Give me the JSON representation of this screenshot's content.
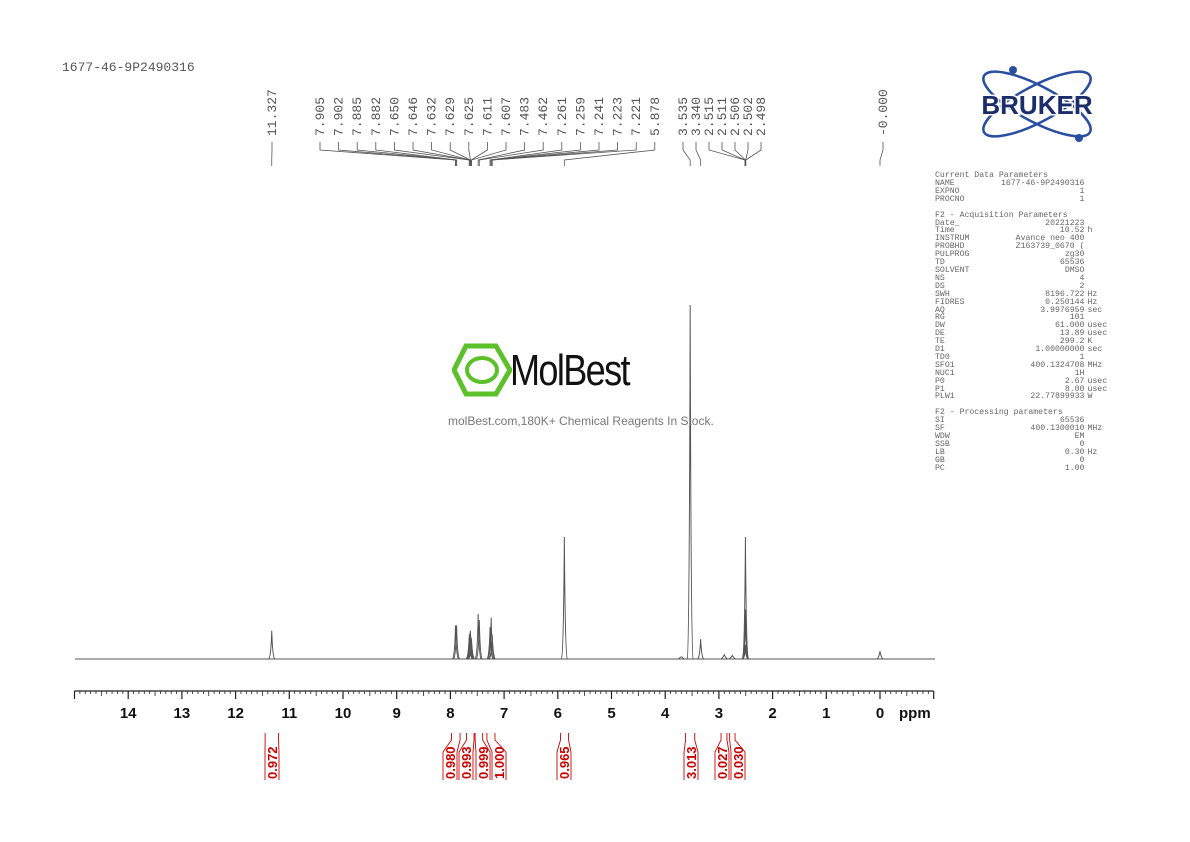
{
  "sample_id": "1677-46-9P2490316",
  "watermark": {
    "name": "MolBest",
    "tagline": "molBest.com,180K+ Chemical Reagents In Stock.",
    "color": "#5cc02a"
  },
  "logo": {
    "text": "BRUKER",
    "color": "#1b2d6b",
    "orbit_color": "#2a4ea0"
  },
  "parameters": {
    "current_title": "Current Data Parameters",
    "current": [
      [
        "NAME",
        "1677-46-9P2490316",
        ""
      ],
      [
        "EXPNO",
        "1",
        ""
      ],
      [
        "PROCNO",
        "1",
        ""
      ]
    ],
    "acq_title": "F2 - Acquisition Parameters",
    "acq": [
      [
        "Date_",
        "20221223",
        ""
      ],
      [
        "Time",
        "10.52",
        "h"
      ],
      [
        "INSTRUM",
        "Avance neo 400",
        ""
      ],
      [
        "PROBHD",
        "Z163739_0670 (",
        ""
      ],
      [
        "PULPROG",
        "zg30",
        ""
      ],
      [
        "TD",
        "65536",
        ""
      ],
      [
        "SOLVENT",
        "DMSO",
        ""
      ],
      [
        "NS",
        "4",
        ""
      ],
      [
        "DS",
        "2",
        ""
      ],
      [
        "SWH",
        "8196.722",
        "Hz"
      ],
      [
        "FIDRES",
        "0.250144",
        "Hz"
      ],
      [
        "AQ",
        "3.9976959",
        "sec"
      ],
      [
        "RG",
        "101",
        ""
      ],
      [
        "DW",
        "61.000",
        "usec"
      ],
      [
        "DE",
        "13.89",
        "usec"
      ],
      [
        "TE",
        "299.2",
        "K"
      ],
      [
        "D1",
        "1.00000000",
        "sec"
      ],
      [
        "TD0",
        "1",
        ""
      ],
      [
        "SFO1",
        "400.1324708",
        "MHz"
      ],
      [
        "NUC1",
        "1H",
        ""
      ],
      [
        "P0",
        "2.67",
        "usec"
      ],
      [
        "P1",
        "8.00",
        "usec"
      ],
      [
        "PLW1",
        "22.77899933",
        "W"
      ]
    ],
    "proc_title": "F2 - Processing parameters",
    "proc": [
      [
        "SI",
        "65536",
        ""
      ],
      [
        "SF",
        "400.1300010",
        "MHz"
      ],
      [
        "WDW",
        "EM",
        ""
      ],
      [
        "SSB",
        "0",
        ""
      ],
      [
        "LB",
        "0.30",
        "Hz"
      ],
      [
        "GB",
        "0",
        ""
      ],
      [
        "PC",
        "1.00",
        ""
      ]
    ]
  },
  "chart_data": {
    "type": "line",
    "xlabel": "ppm",
    "xlim": [
      15,
      -1
    ],
    "x_reversed": true,
    "xticks": [
      14,
      13,
      12,
      11,
      10,
      9,
      8,
      7,
      6,
      5,
      4,
      3,
      2,
      1,
      0
    ],
    "grid": false,
    "line_color": "#555555",
    "label_color": "#555555",
    "integral_color": "#cc0000",
    "peaks": [
      {
        "ppm": 11.327,
        "intensity": 8
      },
      {
        "ppm": 7.905,
        "intensity": 9.5
      },
      {
        "ppm": 7.885,
        "intensity": 9.5
      },
      {
        "ppm": 7.65,
        "intensity": 6
      },
      {
        "ppm": 7.646,
        "intensity": 7
      },
      {
        "ppm": 7.632,
        "intensity": 7.5
      },
      {
        "ppm": 7.629,
        "intensity": 8
      },
      {
        "ppm": 7.625,
        "intensity": 7
      },
      {
        "ppm": 7.611,
        "intensity": 6
      },
      {
        "ppm": 7.607,
        "intensity": 5.5
      },
      {
        "ppm": 7.483,
        "intensity": 12.7
      },
      {
        "ppm": 7.462,
        "intensity": 11
      },
      {
        "ppm": 7.261,
        "intensity": 9
      },
      {
        "ppm": 7.259,
        "intensity": 8.5
      },
      {
        "ppm": 7.241,
        "intensity": 11.7
      },
      {
        "ppm": 7.223,
        "intensity": 7
      },
      {
        "ppm": 7.221,
        "intensity": 6.5
      },
      {
        "ppm": 5.878,
        "intensity": 34.5
      },
      {
        "ppm": 3.535,
        "intensity": 100
      },
      {
        "ppm": 3.34,
        "intensity": 5.6
      },
      {
        "ppm": 3.7,
        "intensity": 0.6
      },
      {
        "ppm": 2.9,
        "intensity": 1.2
      },
      {
        "ppm": 2.75,
        "intensity": 1
      },
      {
        "ppm": 2.515,
        "intensity": 4
      },
      {
        "ppm": 2.511,
        "intensity": 14
      },
      {
        "ppm": 2.506,
        "intensity": 34.5
      },
      {
        "ppm": 2.502,
        "intensity": 14
      },
      {
        "ppm": 2.498,
        "intensity": 4
      },
      {
        "ppm": 0.0,
        "intensity": 2.2
      }
    ],
    "peak_labels": [
      "11.327",
      "7.905",
      "7.902",
      "7.885",
      "7.882",
      "7.650",
      "7.646",
      "7.632",
      "7.629",
      "7.625",
      "7.611",
      "7.607",
      "7.483",
      "7.462",
      "7.261",
      "7.259",
      "7.241",
      "7.223",
      "7.221",
      "5.878",
      "3.535",
      "3.340",
      "2.515",
      "2.511",
      "2.506",
      "2.502",
      "2.498",
      "-0.000"
    ],
    "integrals": [
      {
        "from": 11.45,
        "to": 11.2,
        "value": "0.972"
      },
      {
        "from": 7.98,
        "to": 7.82,
        "value": "0.980"
      },
      {
        "from": 7.7,
        "to": 7.56,
        "value": "0.993"
      },
      {
        "from": 7.54,
        "to": 7.4,
        "value": "0.999"
      },
      {
        "from": 7.32,
        "to": 7.17,
        "value": "1.000"
      },
      {
        "from": 5.95,
        "to": 5.8,
        "value": "0.965"
      },
      {
        "from": 3.62,
        "to": 3.45,
        "value": "3.013"
      },
      {
        "from": 2.96,
        "to": 2.85,
        "value": "0.027"
      },
      {
        "from": 2.8,
        "to": 2.7,
        "value": "0.030"
      }
    ]
  }
}
